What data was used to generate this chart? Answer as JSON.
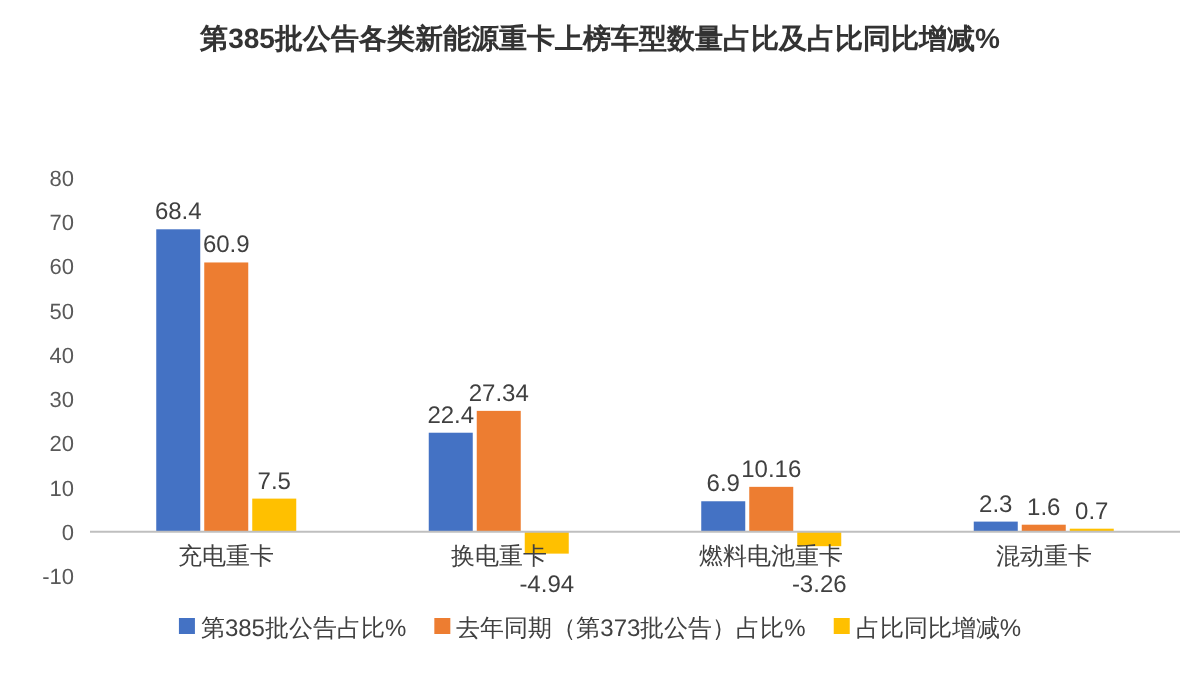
{
  "chart_data": {
    "type": "bar",
    "title": "第385批公告各类新能源重卡上榜车型数量占比及占比同比增减%",
    "categories": [
      "充电重卡",
      "换电重卡",
      "燃料电池重卡",
      "混动重卡"
    ],
    "series": [
      {
        "name": "第385批公告占比%",
        "color": "#4472c4",
        "values": [
          68.4,
          22.4,
          6.9,
          2.3
        ]
      },
      {
        "name": "去年同期（第373批公告）占比%",
        "color": "#ed7d31",
        "values": [
          60.9,
          27.34,
          10.16,
          1.6
        ]
      },
      {
        "name": "占比同比增减%",
        "color": "#ffc000",
        "values": [
          7.5,
          -4.94,
          -3.26,
          0.7
        ]
      }
    ],
    "ylim": [
      -10,
      80
    ],
    "yticks": [
      -10,
      0,
      10,
      20,
      30,
      40,
      50,
      60,
      70,
      80
    ],
    "data_labels": true,
    "legend": "bottom"
  }
}
